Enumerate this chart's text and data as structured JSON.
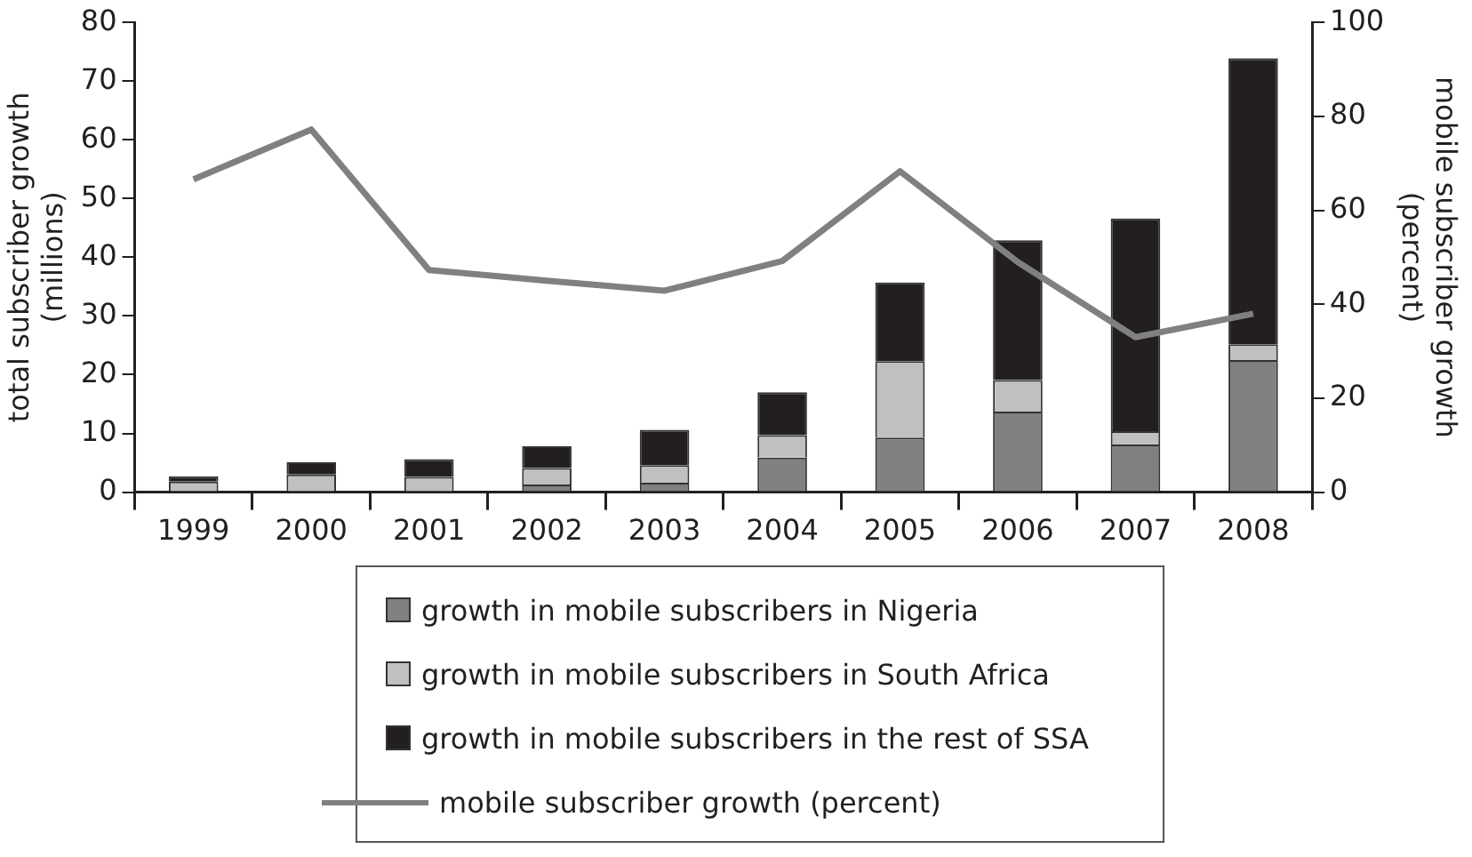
{
  "chart_data": {
    "type": "bar",
    "stacked": true,
    "categories": [
      "1999",
      "2000",
      "2001",
      "2002",
      "2003",
      "2004",
      "2005",
      "2006",
      "2007",
      "2008"
    ],
    "ylabel": "total subscriber growth\n(millions)",
    "y2label": "mobile subscriber growth\n(percent)",
    "ylim": [
      0,
      80
    ],
    "yticks": [
      0,
      10,
      20,
      30,
      40,
      50,
      60,
      70,
      80
    ],
    "y2lim": [
      0,
      100
    ],
    "y2ticks": [
      0,
      20,
      40,
      60,
      80,
      100
    ],
    "grid": false,
    "legend": "bottom",
    "marker": "none",
    "line_style": "solid",
    "series": [
      {
        "name": "growth in mobile subscribers in Nigeria",
        "color": "#808080",
        "values": [
          null,
          null,
          null,
          1.3,
          1.6,
          5.9,
          9.3,
          13.7,
          8.1,
          22.5
        ]
      },
      {
        "name": "growth in mobile subscribers in South Africa",
        "color": "#c0c0c0",
        "values": [
          1.8,
          3.0,
          2.6,
          2.8,
          3.0,
          3.8,
          13.0,
          5.4,
          2.3,
          2.7
        ]
      },
      {
        "name": "growth in mobile subscribers in the rest of SSA",
        "color": "#231f20",
        "values": [
          0.9,
          2.1,
          3.0,
          3.7,
          6.0,
          7.3,
          13.4,
          23.8,
          36.2,
          48.7
        ]
      },
      {
        "name": "mobile subscriber growth (percent)",
        "type": "line",
        "axis": "y2",
        "color": "#808080",
        "values": [
          66.6,
          77.2,
          47.3,
          45,
          42.9,
          49.2,
          68.3,
          49,
          33,
          38
        ]
      }
    ]
  }
}
